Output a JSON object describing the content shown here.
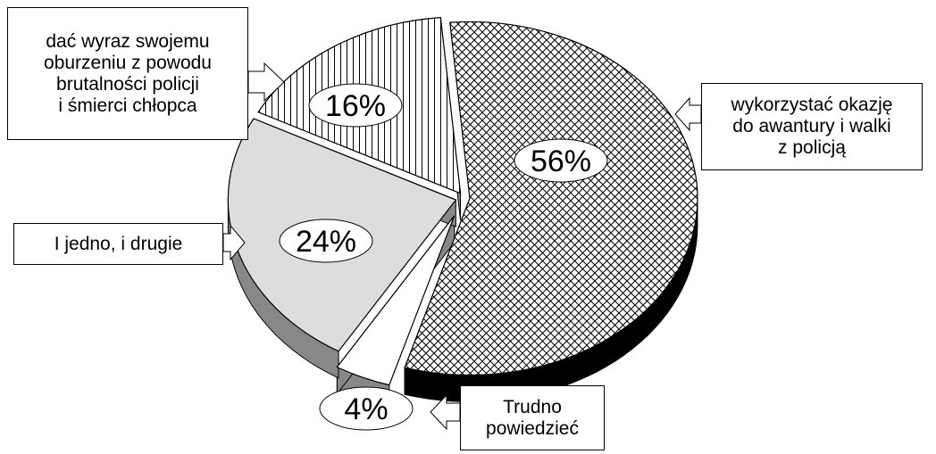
{
  "chart_data": {
    "type": "pie",
    "categories": [
      "wykorzystać okazję\ndo awantury i walki\nz policją",
      "Trudno\npowiedzieć",
      "I jedno, i drugie",
      "dać wyraz swojemu\noburzeniu z powodu\nbrutalności policji\ni śmierci chłopca"
    ],
    "values": [
      56,
      4,
      24,
      16
    ],
    "value_labels": [
      "56%",
      "4%",
      "24%",
      "16%"
    ],
    "colors": [
      "#ffffff",
      "#ffffff",
      "#dddddd",
      "#ffffff"
    ],
    "side_colors": [
      "#000000",
      "#888888",
      "#888888",
      "#888888"
    ],
    "patterns": [
      "crosshatch",
      "none",
      "none",
      "vertical"
    ]
  }
}
